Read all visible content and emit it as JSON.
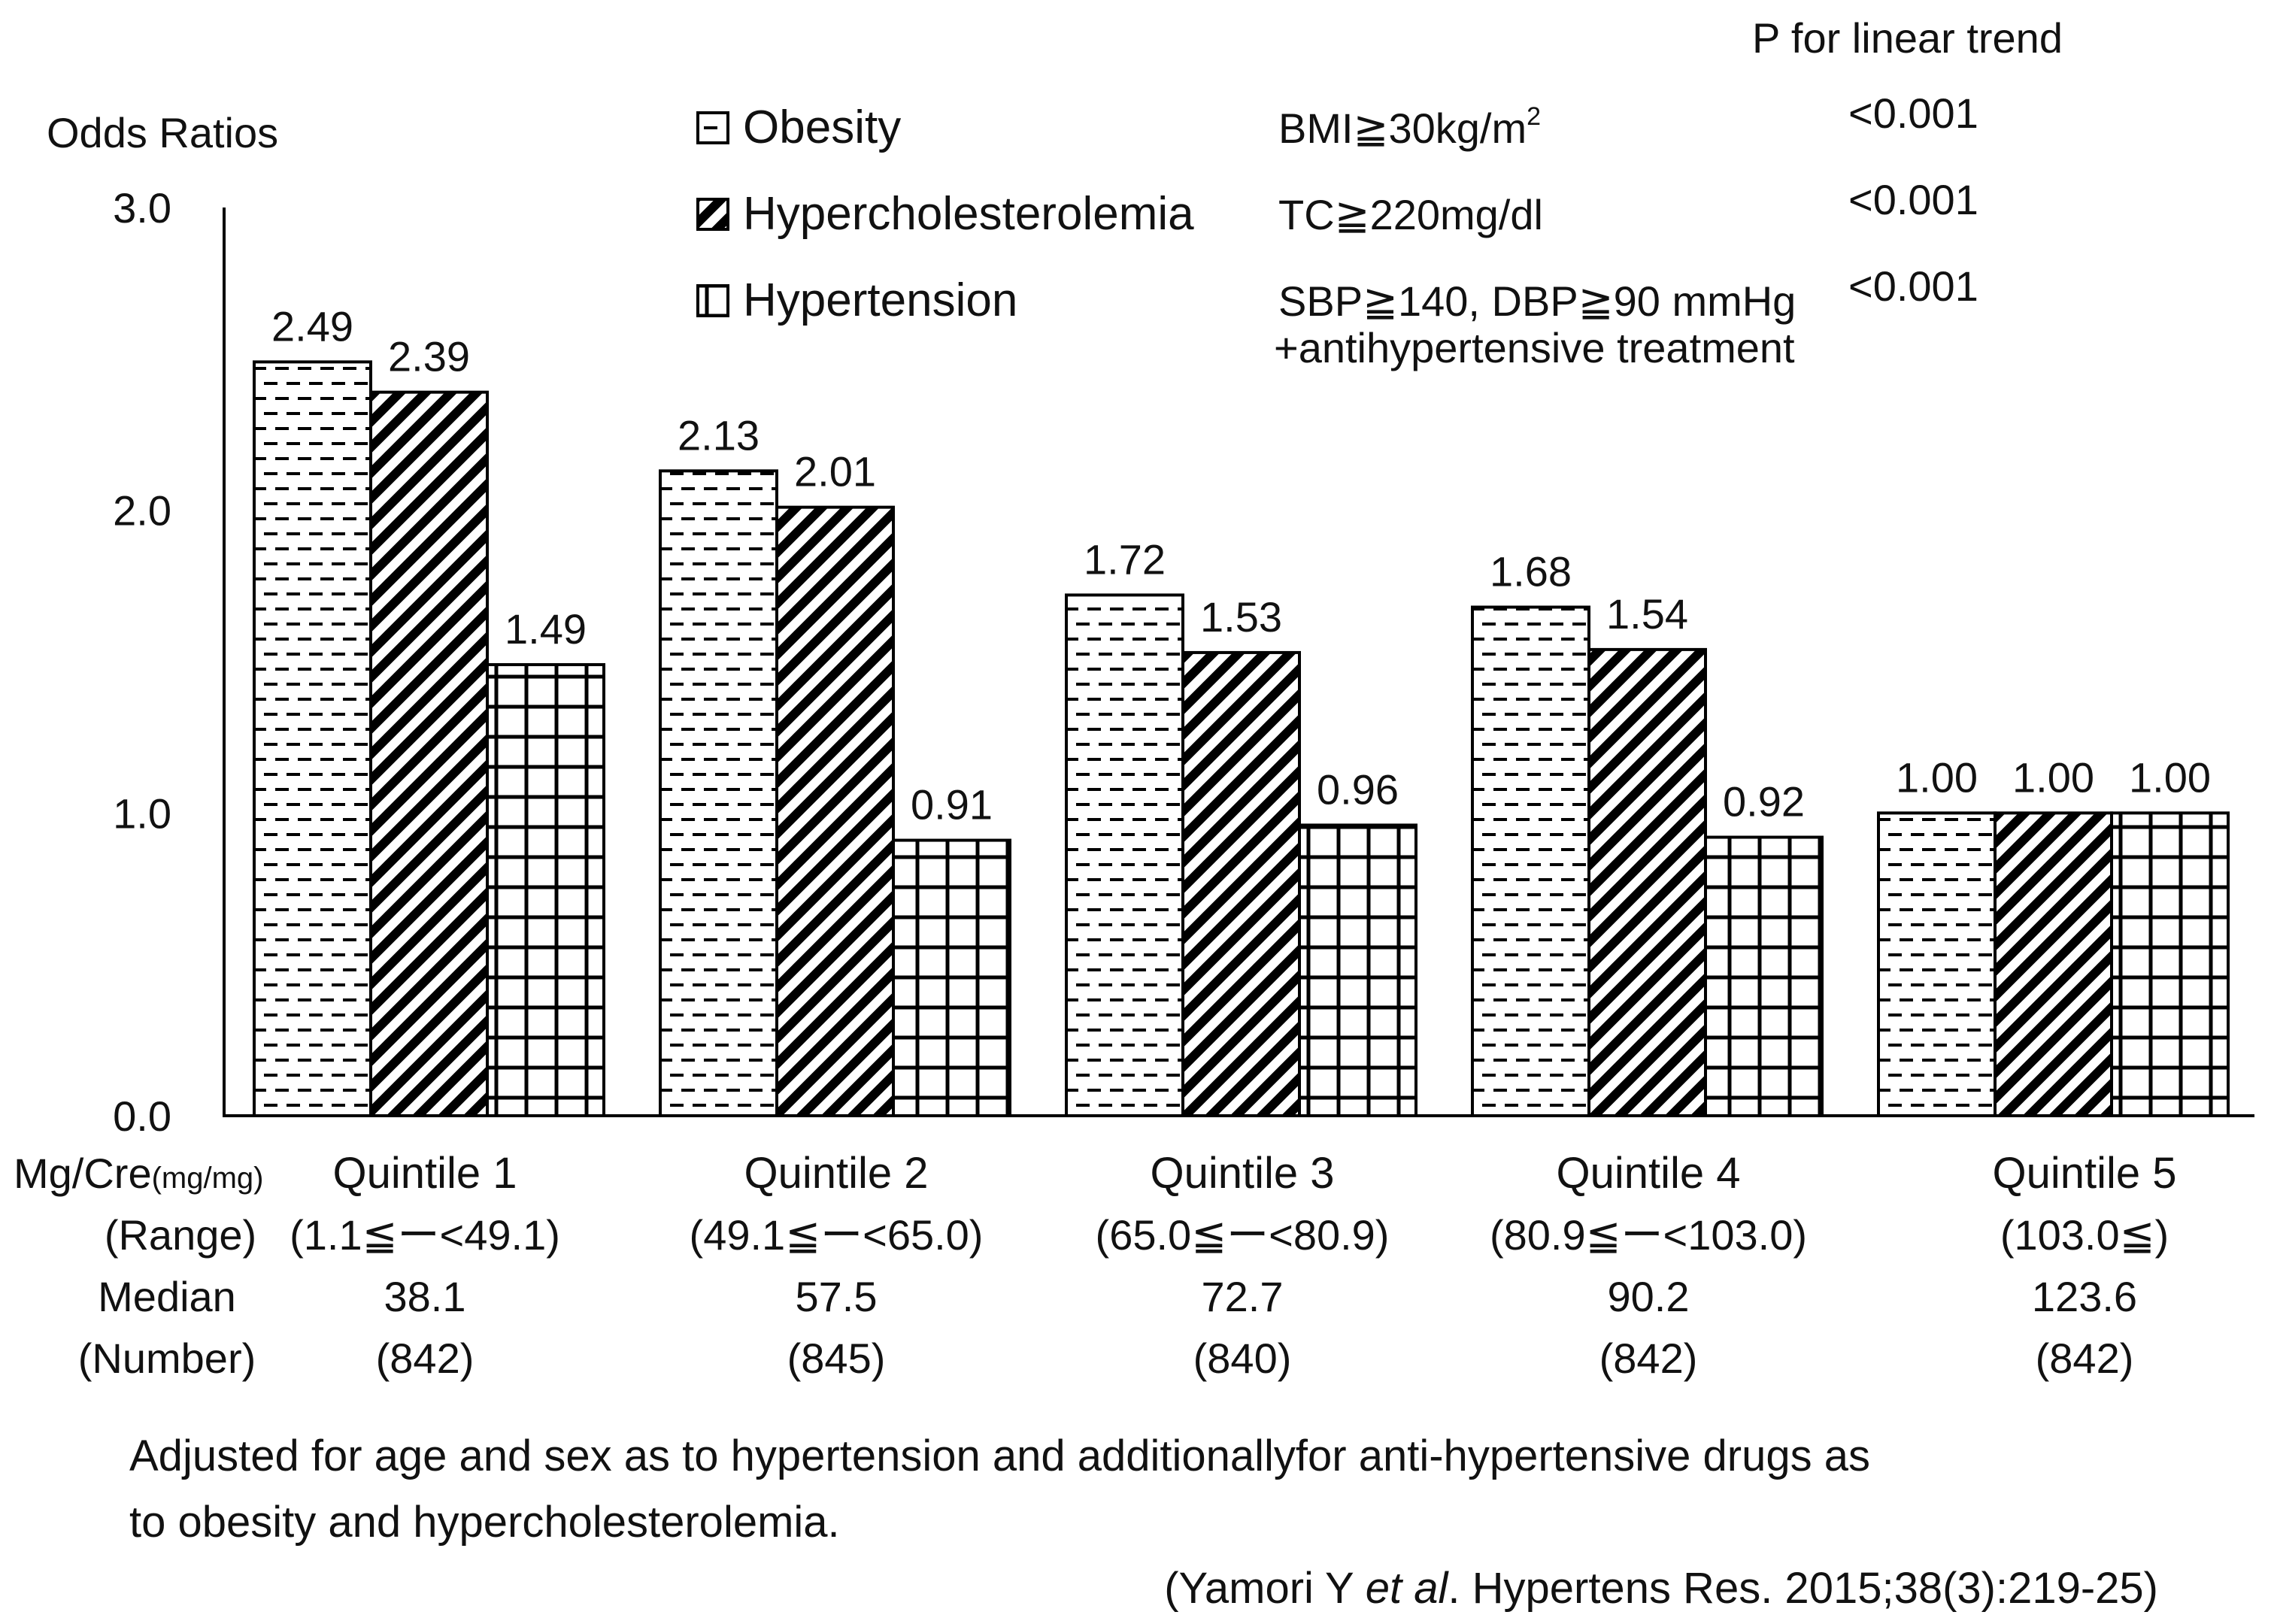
{
  "chart_data": {
    "type": "bar",
    "title": "",
    "ylabel": "Odds Ratios",
    "xlabel": "",
    "ylim": [
      0,
      3
    ],
    "yticks": [
      "0.0",
      "1.0",
      "2.0",
      "3.0"
    ],
    "categories": [
      "Quintile 1",
      "Quintile 2",
      "Quintile 3",
      "Quintile 4",
      "Quintile 5"
    ],
    "series": [
      {
        "name": "Obesity",
        "criterion": "BMI≧30kg/m",
        "criterion_sup": "2",
        "p_trend": "<0.001",
        "values": [
          2.49,
          2.13,
          1.72,
          1.68,
          1.0
        ],
        "labels": [
          "2.49",
          "2.13",
          "1.72",
          "1.68",
          "1.00"
        ],
        "pattern": "dash"
      },
      {
        "name": "Hypercholesterolemia",
        "criterion": "TC≧220mg/dl",
        "criterion_sup": "",
        "p_trend": "<0.001",
        "values": [
          2.39,
          2.01,
          1.53,
          1.54,
          1.0
        ],
        "labels": [
          "2.39",
          "2.01",
          "1.53",
          "1.54",
          "1.00"
        ],
        "pattern": "diagonal"
      },
      {
        "name": "Hypertension",
        "criterion": "SBP≧140, DBP≧90 mmHg",
        "criterion_line2": "+antihypertensive treatment",
        "criterion_sup": "",
        "p_trend": "<0.001",
        "values": [
          1.49,
          0.91,
          0.96,
          0.92,
          1.0
        ],
        "labels": [
          "1.49",
          "0.91",
          "0.96",
          "0.92",
          "1.00"
        ],
        "pattern": "grid"
      }
    ],
    "p_trend_header": "P for linear trend",
    "table": {
      "row_headers": {
        "main": "Mg/Cre",
        "main_unit": "(mg/mg)",
        "range": "(Range)",
        "median": "Median",
        "number": "(Number)"
      },
      "ranges": [
        "(1.1≦ー<49.1)",
        "(49.1≦ー<65.0)",
        "(65.0≦ー<80.9)",
        "(80.9≦ー<103.0)",
        "(103.0≦)"
      ],
      "medians": [
        "38.1",
        "57.5",
        "72.7",
        "90.2",
        "123.6"
      ],
      "numbers": [
        "(842)",
        "(845)",
        "(840)",
        "(842)",
        "(842)"
      ]
    },
    "footnote_line1": "Adjusted for age and sex as to hypertension and additionallyfor anti-hypertensive drugs as",
    "footnote_line2": "to obesity and hypercholesterolemia.",
    "citation_pre": "(Yamori Y ",
    "citation_italic": "et al",
    "citation_post": ". Hypertens Res. 2015;38(3):219-25)"
  }
}
